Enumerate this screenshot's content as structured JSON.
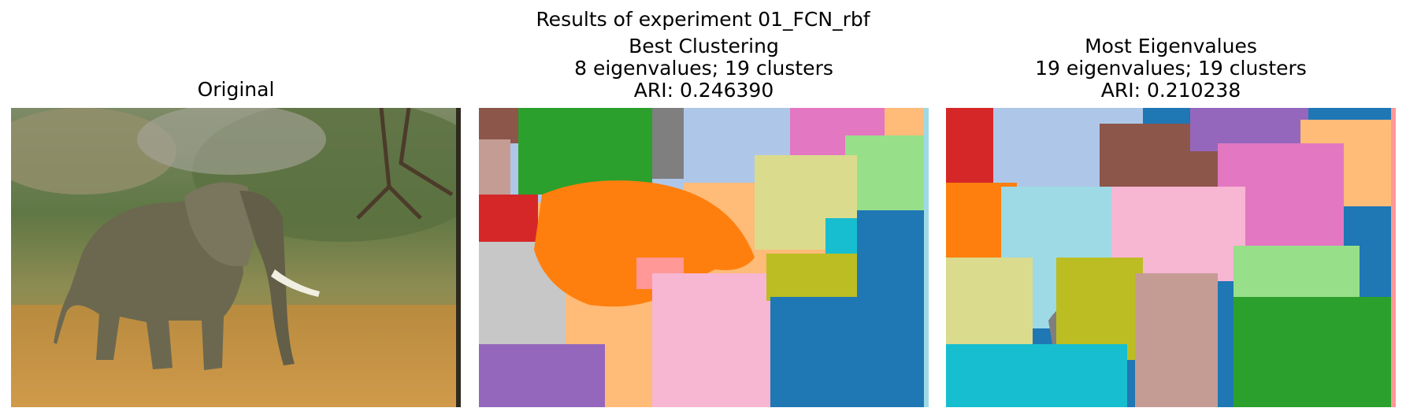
{
  "figure": {
    "suptitle": "Results of experiment 01_FCN_rbf"
  },
  "panels": [
    {
      "id": "original",
      "title_lines": [
        "Original"
      ],
      "image": "photo of an elephant walking through dry grass with trees in background"
    },
    {
      "id": "best-clustering",
      "title_lines": [
        "Best Clustering",
        "8 eigenvalues; 19 clusters",
        "ARI: 0.246390"
      ],
      "image": "segmentation map with colored clusters"
    },
    {
      "id": "most-eigenvalues",
      "title_lines": [
        "Most Eigenvalues",
        "19 eigenvalues; 19 clusters",
        "ARI: 0.210238"
      ],
      "image": "segmentation map with colored clusters"
    }
  ],
  "colors": {
    "tab_blue": "#1f77b4",
    "tab_lightblue": "#aec7e8",
    "tab_orange": "#ff7f0e",
    "tab_lightorange": "#ffbb78",
    "tab_green": "#2ca02c",
    "tab_lightgreen": "#98df8a",
    "tab_red": "#d62728",
    "tab_pink": "#ff9896",
    "tab_purple": "#9467bd",
    "tab_lightpurple": "#c5b0d5",
    "tab_brown": "#8c564b",
    "tab_lightbrown": "#c49c94",
    "tab_magenta": "#e377c2",
    "tab_lightmagenta": "#f7b6d2",
    "tab_gray": "#7f7f7f",
    "tab_lightgray": "#c7c7c7",
    "tab_olive": "#bcbd22",
    "tab_lightolive": "#dbdb8d",
    "tab_cyan": "#17becf",
    "tab_lightcyan": "#9edae5"
  }
}
